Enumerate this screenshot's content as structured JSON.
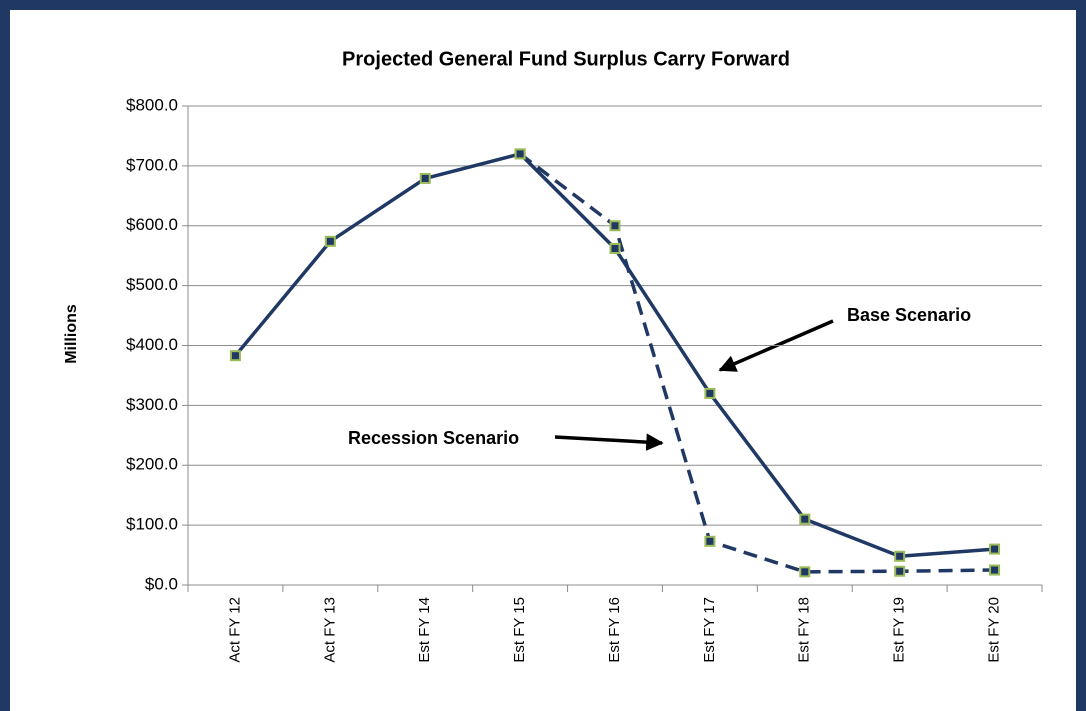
{
  "chart_data": {
    "type": "line",
    "title": "Projected General Fund Surplus Carry Forward",
    "y_label": "Millions",
    "categories": [
      "Act FY 12",
      "Act FY 13",
      "Est FY 14",
      "Est FY 15",
      "Est FY 16",
      "Est FY 17",
      "Est FY 18",
      "Est FY 19",
      "Est FY 20"
    ],
    "series": [
      {
        "name": "Base Scenario",
        "color": "#1f3864",
        "dashed": false,
        "values": [
          383,
          574,
          679,
          720,
          562,
          320,
          110,
          48,
          60
        ]
      },
      {
        "name": "Recession Scenario",
        "color": "#1f3864",
        "dashed": true,
        "values": [
          null,
          null,
          null,
          720,
          600,
          73,
          22,
          23,
          25
        ]
      }
    ],
    "marker_edge_color": "#9bbb59",
    "annotations": [
      "Base Scenario",
      "Recession Scenario"
    ],
    "ylim": [
      0,
      800
    ],
    "yticks": [
      {
        "value": 0,
        "label": "$0.0"
      },
      {
        "value": 100,
        "label": "$100.0"
      },
      {
        "value": 200,
        "label": "$200.0"
      },
      {
        "value": 300,
        "label": "$300.0"
      },
      {
        "value": 400,
        "label": "$400.0"
      },
      {
        "value": 500,
        "label": "$500.0"
      },
      {
        "value": 600,
        "label": "$600.0"
      },
      {
        "value": 700,
        "label": "$700.0"
      },
      {
        "value": 800,
        "label": "$800.0"
      }
    ],
    "grid": true
  }
}
